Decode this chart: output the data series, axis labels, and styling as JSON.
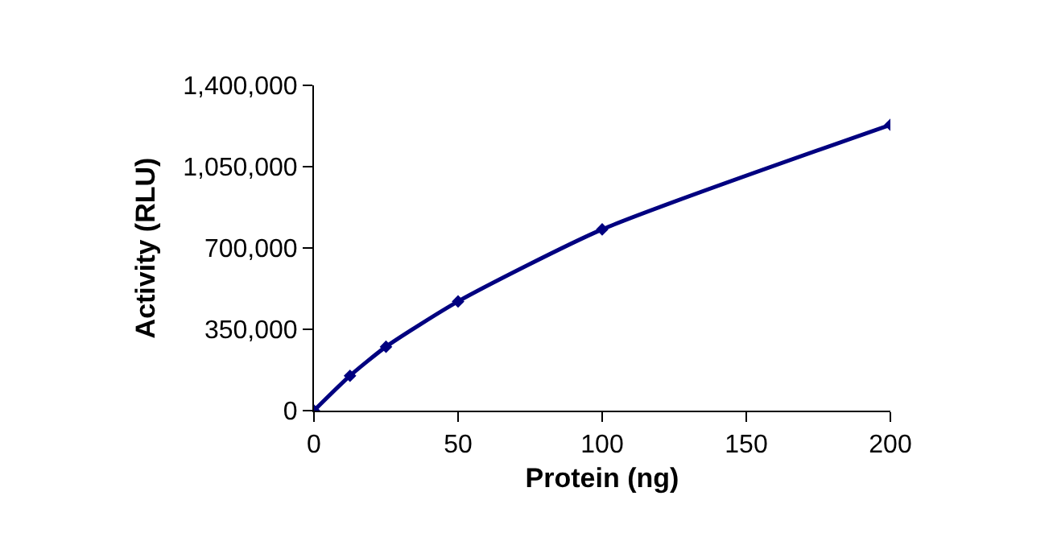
{
  "chart_data": {
    "type": "line",
    "xlabel": "Protein (ng)",
    "ylabel": "Activity (RLU)",
    "x": [
      0,
      12.5,
      25,
      50,
      100,
      200
    ],
    "series": [
      {
        "color": "#000080",
        "values": [
          0,
          150000,
          275000,
          470000,
          780000,
          1230000
        ]
      }
    ],
    "xlim": [
      0,
      200
    ],
    "xticks": [
      0,
      50,
      100,
      150,
      200
    ],
    "ylim": [
      0,
      1400000
    ],
    "yticks": [
      {
        "value": 0,
        "label": "0"
      },
      {
        "value": 350000,
        "label": "350,000"
      },
      {
        "value": 700000,
        "label": "700,000"
      },
      {
        "value": 1050000,
        "label": "1,050,000"
      },
      {
        "value": 1400000,
        "label": "1,400,000"
      }
    ],
    "grid": false,
    "legend": false,
    "marker": "diamond",
    "line_style": "solid"
  }
}
